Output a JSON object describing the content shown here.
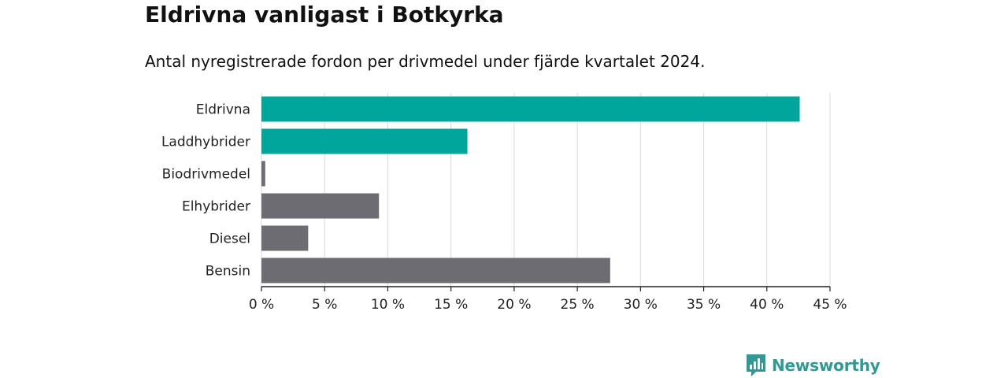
{
  "header": {
    "title": "Eldrivna vanligast i Botkyrka",
    "subtitle": "Antal nyregistrerade fordon per drivmedel under fjärde kvartalet 2024."
  },
  "chart_data": {
    "type": "bar",
    "orientation": "horizontal",
    "categories": [
      "Eldrivna",
      "Laddhybrider",
      "Biodrivmedel",
      "Elhybrider",
      "Diesel",
      "Bensin"
    ],
    "values": [
      42.6,
      16.3,
      0.3,
      9.3,
      3.7,
      27.6
    ],
    "colors": [
      "#00a69a",
      "#00a69a",
      "#6d6c72",
      "#6d6c72",
      "#6d6c72",
      "#6d6c72"
    ],
    "xlim": [
      0,
      45
    ],
    "xticks": [
      0,
      5,
      10,
      15,
      20,
      25,
      30,
      35,
      40,
      45
    ],
    "tick_suffix": " %",
    "grid": true,
    "xlabel": "",
    "ylabel": ""
  },
  "branding": {
    "name": "Newsworthy",
    "icon": "newsworthy-logo-icon",
    "color": "#2e9a93"
  }
}
